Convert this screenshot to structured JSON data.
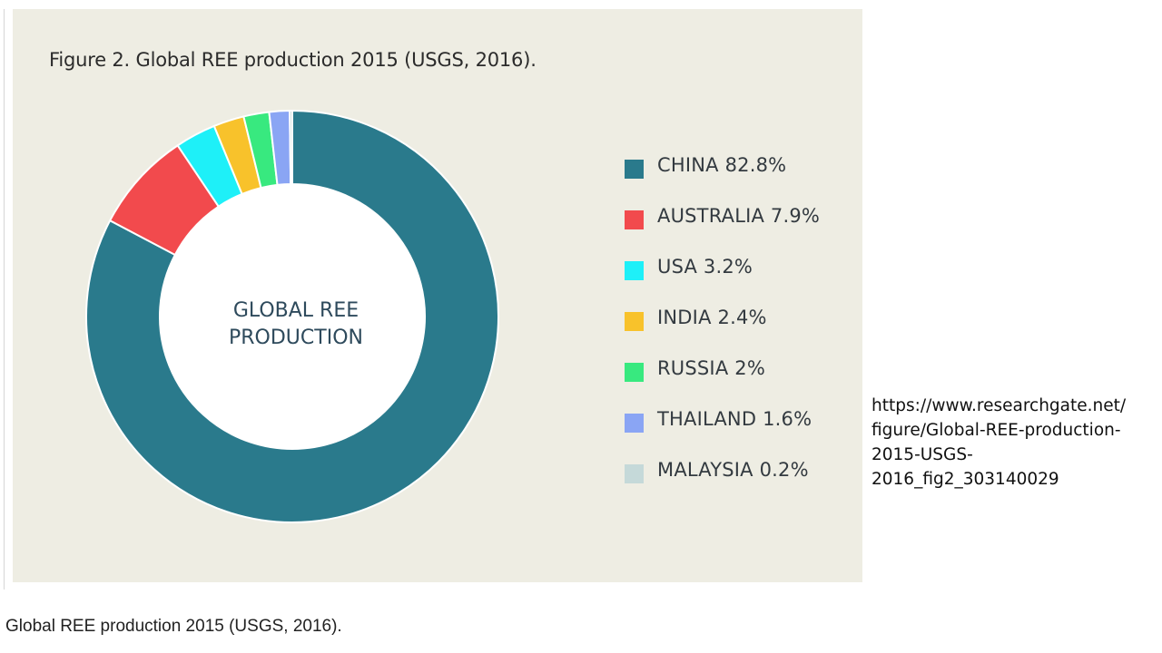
{
  "figure_title": "Figure 2. Global REE production 2015 (USGS, 2016).",
  "center_label_lines": [
    "GLOBAL REE",
    "PRODUCTION"
  ],
  "source_url_text": "https://www.researchgate.net/\nfigure/Global-REE-production-\n2015-USGS-\n2016_fig2_303140029",
  "caption": "Global REE production 2015 (USGS, 2016).",
  "colors": {
    "panel_background": "#eeede3",
    "china": "#2a7a8c",
    "australia": "#f24a4d",
    "usa": "#1ef0f8",
    "india": "#f8c22b",
    "russia": "#38e97f",
    "thailand": "#8aa5f4",
    "malaysia": "#c5d9d9"
  },
  "chart_data": {
    "type": "pie",
    "variant": "donut",
    "title": "Figure 2. Global REE production 2015 (USGS, 2016).",
    "center_text": "GLOBAL REE PRODUCTION",
    "unit": "%",
    "legend_position": "right",
    "slices": [
      {
        "name": "CHINA",
        "value": 82.8,
        "legend_label": "CHINA 82.8%",
        "color": "#2a7a8c"
      },
      {
        "name": "AUSTRALIA",
        "value": 7.9,
        "legend_label": "AUSTRALIA 7.9%",
        "color": "#f24a4d"
      },
      {
        "name": "USA",
        "value": 3.2,
        "legend_label": "USA 3.2%",
        "color": "#1ef0f8"
      },
      {
        "name": "INDIA",
        "value": 2.4,
        "legend_label": "INDIA 2.4%",
        "color": "#f8c22b"
      },
      {
        "name": "RUSSIA",
        "value": 2,
        "legend_label": "RUSSIA 2%",
        "color": "#38e97f"
      },
      {
        "name": "THAILAND",
        "value": 1.6,
        "legend_label": "THAILAND 1.6%",
        "color": "#8aa5f4"
      },
      {
        "name": "MALAYSIA",
        "value": 0.2,
        "legend_label": "MALAYSIA 0.2%",
        "color": "#c5d9d9"
      }
    ]
  }
}
